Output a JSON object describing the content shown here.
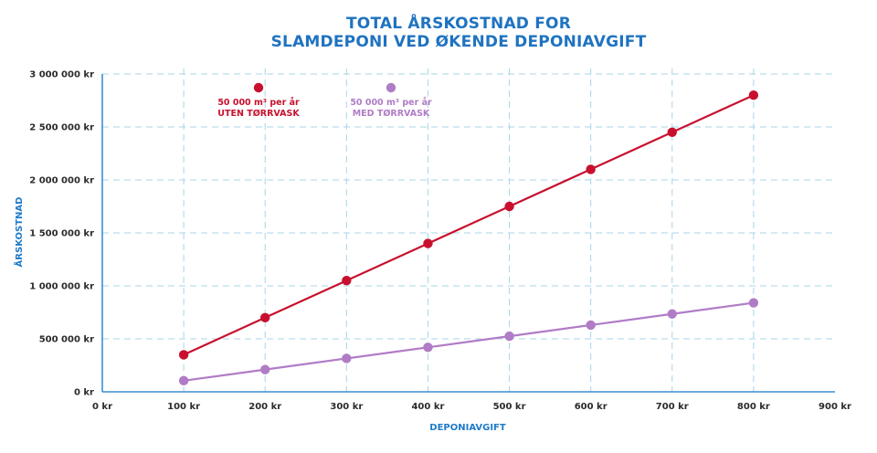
{
  "chart_data": {
    "type": "line",
    "title": [
      "TOTAL ÅRSKOSTNAD FOR",
      "SLAMDEPONI VED ØKENDE DEPONIAVGIFT"
    ],
    "xlabel": "DEPONIAVGIFT",
    "ylabel": "ÅRSKOSTNAD",
    "xlim": [
      0,
      900
    ],
    "ylim": [
      0,
      3000000
    ],
    "x_ticks": [
      0,
      100,
      200,
      300,
      400,
      500,
      600,
      700,
      800,
      900
    ],
    "x_tick_labels": [
      "0 kr",
      "100 kr",
      "200 kr",
      "300 kr",
      "400 kr",
      "500 kr",
      "600 kr",
      "700 kr",
      "800 kr",
      "900 kr"
    ],
    "y_ticks": [
      0,
      500000,
      1000000,
      1500000,
      2000000,
      2500000,
      3000000
    ],
    "y_tick_labels": [
      "0 kr",
      "500 000 kr",
      "1 000 000 kr",
      "1 500 000 kr",
      "2 000 000 kr",
      "2 500 000 kr",
      "3 000 000 kr"
    ],
    "grid": true,
    "legend_placement": "top-left",
    "x": [
      100,
      200,
      300,
      400,
      500,
      600,
      700,
      800
    ],
    "series": [
      {
        "name": "50 000 m³ per år UTEN TØRRVASK",
        "legend_lines": [
          "50 000 m³ per år",
          "UTEN TØRRVASK"
        ],
        "color": "#c8102e",
        "values": [
          350000,
          700000,
          1050000,
          1400000,
          1750000,
          2100000,
          2450000,
          2800000
        ]
      },
      {
        "name": "50 000 m³ per år MED TØRRVASK",
        "legend_lines": [
          "50 000 m³ per år",
          "MED TØRRVASK"
        ],
        "color": "#b07cc6",
        "values": [
          105000,
          210000,
          315000,
          420000,
          525000,
          630000,
          735000,
          840000
        ]
      }
    ]
  },
  "colors": {
    "title": "#1f73c0",
    "axis": "#3a8fd6",
    "grid": "#a9d4ea",
    "tick_text": "#2b2b2b"
  }
}
